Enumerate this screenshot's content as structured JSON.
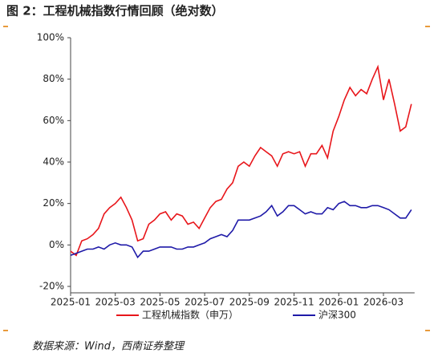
{
  "chart_data": {
    "type": "line",
    "title": "图 2：工程机械指数行情回顾（绝对数）",
    "source": "数据来源：Wind，西南证券整理",
    "categories": [
      "2025-01",
      null,
      null,
      null,
      null,
      null,
      null,
      null,
      "2025-03",
      null,
      null,
      null,
      null,
      null,
      null,
      null,
      "2025-05",
      null,
      null,
      null,
      null,
      null,
      null,
      null,
      "2025-07",
      null,
      null,
      null,
      null,
      null,
      null,
      null,
      "2025-09",
      null,
      null,
      null,
      null,
      null,
      null,
      null,
      "2025-11",
      null,
      null,
      null,
      null,
      null,
      null,
      null,
      "2026-01",
      null,
      null,
      null,
      null,
      null,
      null,
      null,
      "2026-03",
      null,
      null,
      null,
      null,
      null
    ],
    "series": [
      {
        "name": "工程机械指数（申万）",
        "color": "#e8161b",
        "values": [
          -3,
          -5,
          2,
          3,
          5,
          8,
          15,
          18,
          20,
          23,
          18,
          12,
          2,
          3,
          10,
          12,
          15,
          16,
          12,
          15,
          14,
          10,
          11,
          8,
          13,
          18,
          21,
          22,
          27,
          30,
          38,
          40,
          38,
          43,
          47,
          45,
          43,
          38,
          44,
          45,
          44,
          45,
          38,
          44,
          44,
          48,
          42,
          55,
          62,
          70,
          76,
          72,
          75,
          73,
          80,
          86,
          70,
          80,
          68,
          55,
          57,
          68
        ]
      },
      {
        "name": "沪深300",
        "color": "#1f1aa8",
        "values": [
          -5,
          -4,
          -3,
          -2,
          -2,
          -1,
          -2,
          0,
          1,
          0,
          0,
          -1,
          -6,
          -3,
          -3,
          -2,
          -1,
          -1,
          -1,
          -2,
          -2,
          -1,
          -1,
          0,
          1,
          3,
          4,
          5,
          4,
          7,
          12,
          12,
          12,
          13,
          14,
          16,
          19,
          14,
          16,
          19,
          19,
          17,
          15,
          16,
          15,
          15,
          18,
          17,
          20,
          21,
          19,
          19,
          18,
          18,
          19,
          19,
          18,
          17,
          15,
          13,
          13,
          17
        ]
      }
    ],
    "ylim": [
      -20,
      100
    ],
    "yticks": [
      {
        "value": -20,
        "label": "-20%"
      },
      {
        "value": 0,
        "label": "0%"
      },
      {
        "value": 20,
        "label": "20%"
      },
      {
        "value": 40,
        "label": "40%"
      },
      {
        "value": 60,
        "label": "60%"
      },
      {
        "value": 80,
        "label": "80%"
      },
      {
        "value": 100,
        "label": "100%"
      }
    ],
    "legend": "bottom"
  }
}
